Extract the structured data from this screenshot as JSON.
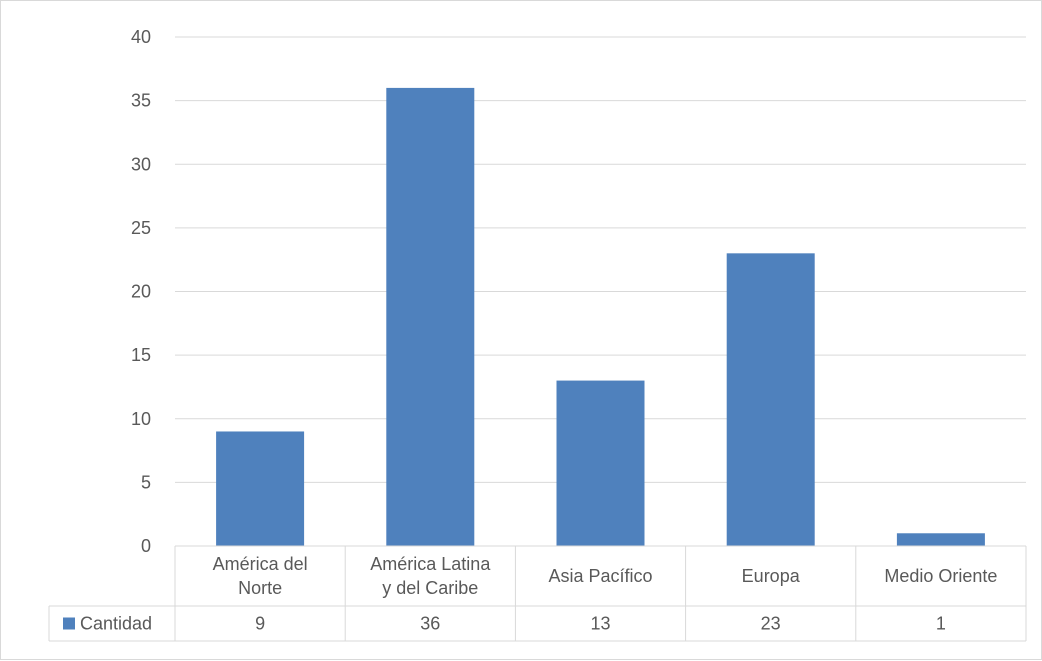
{
  "chart_data": {
    "type": "bar",
    "title": "",
    "xlabel": "",
    "ylabel": "",
    "categories": [
      [
        "América del",
        "Norte"
      ],
      [
        "América Latina",
        "y del Caribe"
      ],
      [
        "Asia Pacífico"
      ],
      [
        "Europa"
      ],
      [
        "Medio Oriente"
      ]
    ],
    "series": [
      {
        "name": "Cantidad",
        "values": [
          9,
          36,
          13,
          23,
          1
        ],
        "color": "#4f81bd"
      }
    ],
    "ylim": [
      0,
      40
    ],
    "yticks": [
      "0",
      "5",
      "10",
      "15",
      "20",
      "25",
      "30",
      "35",
      "40"
    ],
    "grid": true,
    "data_table": true,
    "legend": "data-table",
    "gridline_color": "#d9d9d9"
  }
}
